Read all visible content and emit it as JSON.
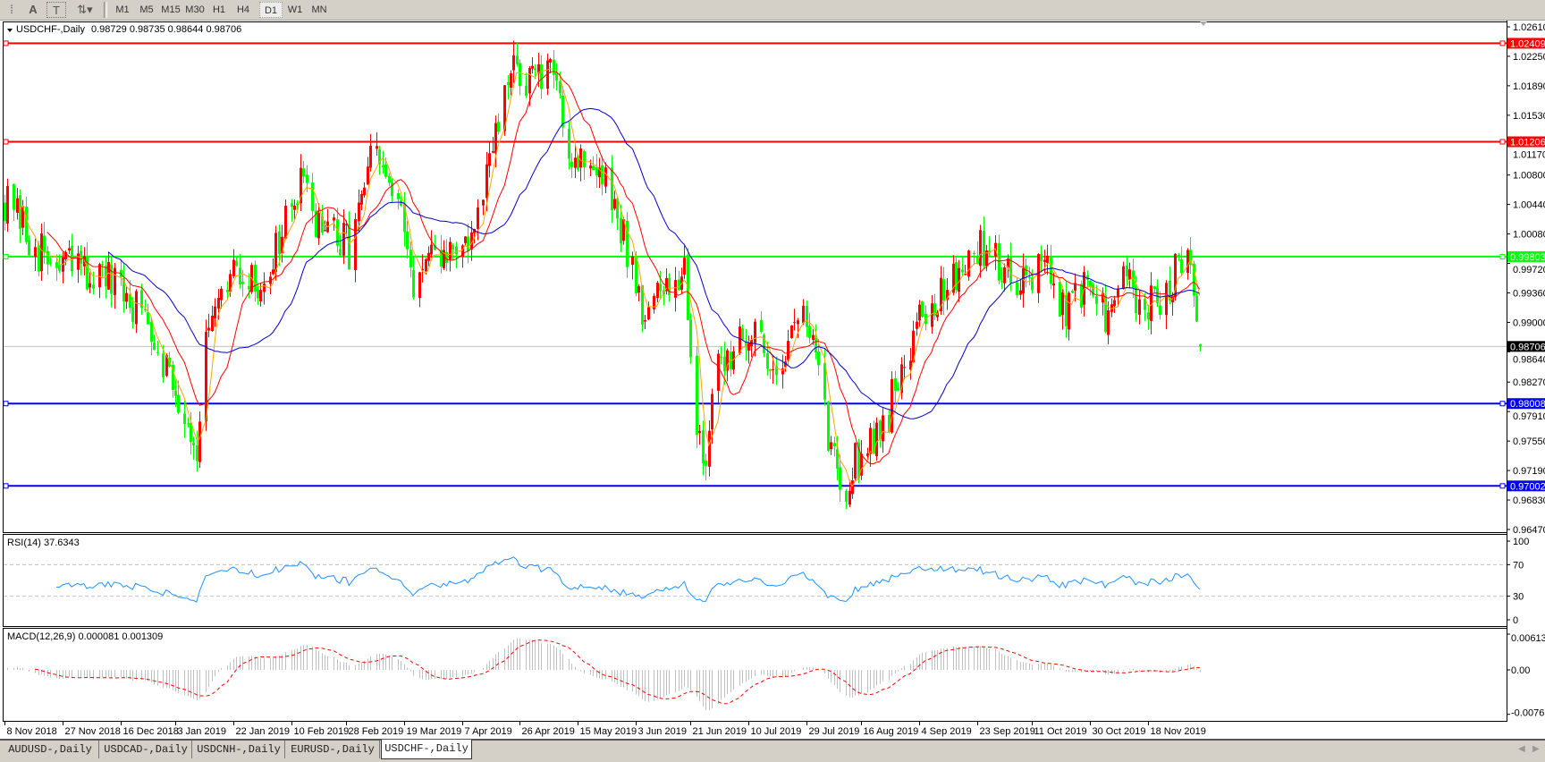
{
  "toolbar": {
    "icons": [
      "period-separator-icon",
      "text-a-icon",
      "text-label-icon",
      "arrows-dropdown-icon"
    ],
    "icon_glyphs": [
      "⁞",
      "A",
      "T",
      "⇅▾"
    ],
    "timeframes": [
      "M1",
      "M5",
      "M15",
      "M30",
      "H1",
      "H4",
      "D1",
      "W1",
      "MN"
    ],
    "active_timeframe": "D1"
  },
  "header": {
    "symbol": "USDCHF-,Daily",
    "ohlc": "0.98729 0.98735 0.98644 0.98706"
  },
  "colors": {
    "bull_candle": "#ff0000",
    "bear_candle": "#00ff00",
    "ma_fast": "#ffa500",
    "ma_mid": "#ff0000",
    "ma_slow": "#0000cd",
    "rsi_line": "#1e90ff",
    "macd_hist": "#c0c0c0",
    "macd_signal": "#ff0000"
  },
  "chart_data": [
    {
      "type": "candlestick",
      "title": "USDCHF-,Daily",
      "ylim": [
        0.9647,
        1.0261
      ],
      "grid": false,
      "last_bar": {
        "open": 0.98729,
        "high": 0.98735,
        "low": 0.98644,
        "close": 0.98706
      },
      "price_ticks": [
        "1.02610",
        "1.02250",
        "1.01890",
        "1.01530",
        "1.01170",
        "1.00800",
        "1.00440",
        "1.00080",
        "0.99720",
        "0.99360",
        "0.99000",
        "0.98640",
        "0.98270",
        "0.97910",
        "0.97550",
        "0.97190",
        "0.96830",
        "0.96470"
      ],
      "date_ticks": [
        {
          "date": "2018-11-08",
          "label": "8 Nov 2018"
        },
        {
          "date": "2018-11-27",
          "label": "27 Nov 2018"
        },
        {
          "date": "2018-12-16",
          "label": "16 Dec 2018"
        },
        {
          "date": "2019-01-03",
          "label": "3 Jan 2019"
        },
        {
          "date": "2019-01-22",
          "label": "22 Jan 2019"
        },
        {
          "date": "2019-02-10",
          "label": "10 Feb 2019"
        },
        {
          "date": "2019-02-28",
          "label": "28 Feb 2019"
        },
        {
          "date": "2019-03-19",
          "label": "19 Mar 2019"
        },
        {
          "date": "2019-04-07",
          "label": "7 Apr 2019"
        },
        {
          "date": "2019-04-26",
          "label": "26 Apr 2019"
        },
        {
          "date": "2019-05-15",
          "label": "15 May 2019"
        },
        {
          "date": "2019-06-03",
          "label": "3 Jun 2019"
        },
        {
          "date": "2019-06-21",
          "label": "21 Jun 2019"
        },
        {
          "date": "2019-07-10",
          "label": "10 Jul 2019"
        },
        {
          "date": "2019-07-29",
          "label": "29 Jul 2019"
        },
        {
          "date": "2019-08-16",
          "label": "16 Aug 2019"
        },
        {
          "date": "2019-09-04",
          "label": "4 Sep 2019"
        },
        {
          "date": "2019-09-23",
          "label": "23 Sep 2019"
        },
        {
          "date": "2019-10-11",
          "label": "11 Oct 2019"
        },
        {
          "date": "2019-10-30",
          "label": "30 Oct 2019"
        },
        {
          "date": "2019-11-18",
          "label": "18 Nov 2019"
        }
      ],
      "horizontal_lines": [
        {
          "value": "1.02409",
          "color": "#ff0000"
        },
        {
          "value": "1.01206",
          "color": "#ff0000"
        },
        {
          "value": "0.99803",
          "color": "#00ff00"
        },
        {
          "value": "0.98008",
          "color": "#0000ff"
        },
        {
          "value": "0.97002",
          "color": "#0000ff"
        }
      ],
      "current_price": {
        "value": "0.98706",
        "color": "#000000"
      },
      "approx_close_path": [
        [
          "2018-11-08",
          1.005
        ],
        [
          "2018-11-13",
          1.002
        ],
        [
          "2018-11-23",
          0.9968
        ],
        [
          "2018-11-29",
          0.997
        ],
        [
          "2018-12-09",
          0.9956
        ],
        [
          "2018-12-17",
          0.993
        ],
        [
          "2018-12-25",
          0.9908
        ],
        [
          "2018-12-31",
          0.985
        ],
        [
          "2019-01-10",
          0.975
        ],
        [
          "2019-01-13",
          0.987
        ],
        [
          "2019-01-23",
          0.9968
        ],
        [
          "2019-01-30",
          0.9938
        ],
        [
          "2019-02-06",
          1.0
        ],
        [
          "2019-02-13",
          1.0064
        ],
        [
          "2019-02-21",
          1.001
        ],
        [
          "2019-03-01",
          0.9992
        ],
        [
          "2019-03-09",
          1.0107
        ],
        [
          "2019-03-16",
          1.005
        ],
        [
          "2019-03-22",
          0.9956
        ],
        [
          "2019-03-29",
          0.997
        ],
        [
          "2019-04-04",
          0.9992
        ],
        [
          "2019-04-11",
          1.0
        ],
        [
          "2019-04-17",
          1.011
        ],
        [
          "2019-04-24",
          1.021
        ],
        [
          "2019-04-30",
          1.0197
        ],
        [
          "2019-05-08",
          1.0197
        ],
        [
          "2019-05-13",
          1.01
        ],
        [
          "2019-05-19",
          1.01
        ],
        [
          "2019-05-26",
          1.005
        ],
        [
          "2019-06-01",
          0.998
        ],
        [
          "2019-06-06",
          0.991
        ],
        [
          "2019-06-14",
          0.9944
        ],
        [
          "2019-06-19",
          0.998
        ],
        [
          "2019-06-22",
          0.9787
        ],
        [
          "2019-06-26",
          0.974
        ],
        [
          "2019-06-30",
          0.9835
        ],
        [
          "2019-07-07",
          0.9896
        ],
        [
          "2019-07-13",
          0.987
        ],
        [
          "2019-07-20",
          0.9848
        ],
        [
          "2019-07-26",
          0.991
        ],
        [
          "2019-07-31",
          0.9884
        ],
        [
          "2019-08-05",
          0.976
        ],
        [
          "2019-08-11",
          0.9703
        ],
        [
          "2019-08-18",
          0.976
        ],
        [
          "2019-08-24",
          0.9775
        ],
        [
          "2019-08-29",
          0.985
        ],
        [
          "2019-09-04",
          0.991
        ],
        [
          "2019-09-11",
          0.993
        ],
        [
          "2019-09-17",
          0.997
        ],
        [
          "2019-09-25",
          0.9992
        ],
        [
          "2019-10-05",
          0.9956
        ],
        [
          "2019-10-15",
          0.997
        ],
        [
          "2019-10-20",
          0.991
        ],
        [
          "2019-10-25",
          0.993
        ],
        [
          "2019-10-31",
          0.9944
        ],
        [
          "2019-11-05",
          0.9896
        ],
        [
          "2019-11-10",
          0.996
        ],
        [
          "2019-11-16",
          0.991
        ],
        [
          "2019-11-23",
          0.993
        ],
        [
          "2019-11-29",
          0.998
        ],
        [
          "2019-12-02",
          0.9992
        ],
        [
          "2019-12-05",
          0.98706
        ]
      ]
    },
    {
      "type": "line",
      "title": "RSI(14) 37.6343",
      "ylim": [
        0,
        100
      ],
      "levels": [
        70,
        30
      ],
      "ticks": [
        "100",
        "70",
        "30",
        "0"
      ]
    },
    {
      "type": "bar",
      "title": "MACD(12,26,9) 0.000081 0.001309",
      "ylim": [
        -0.007612,
        0.00613
      ],
      "ticks": [
        "0.00613",
        "0.00",
        "-0.007612"
      ]
    }
  ],
  "tabs": [
    "AUDUSD-,Daily",
    "USDCAD-,Daily",
    "USDCNH-,Daily",
    "EURUSD-,Daily",
    "USDCHF-,Daily"
  ],
  "active_tab": "USDCHF-,Daily"
}
